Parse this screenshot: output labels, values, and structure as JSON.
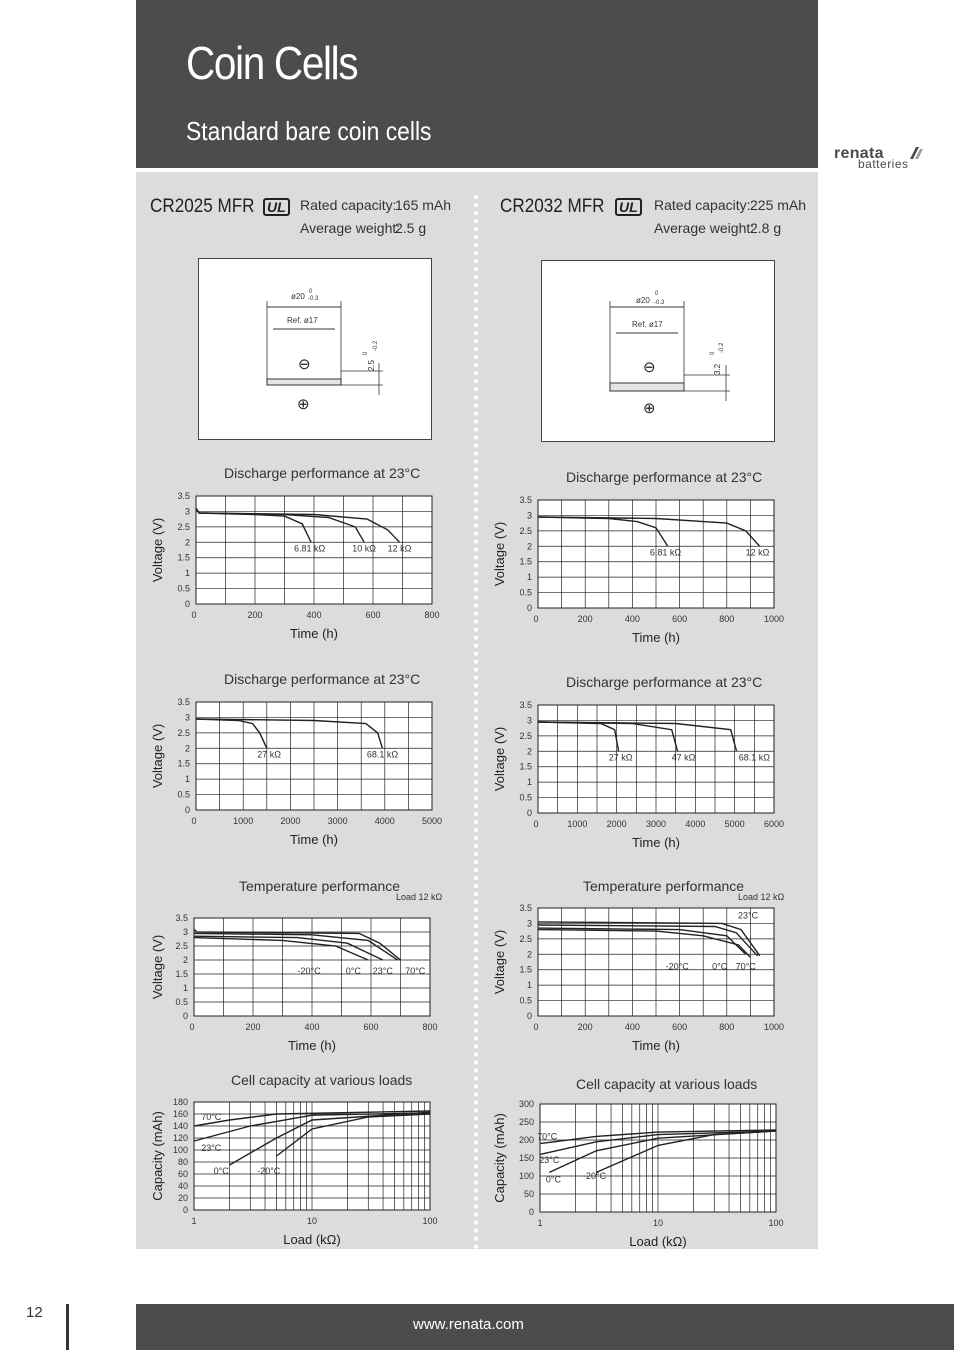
{
  "header": {
    "title": "Coin Cells",
    "subtitle": "Standard bare coin cells",
    "brand": "renata",
    "brand_sub": "batteries"
  },
  "colors": {
    "header_bg": "#4c4c4e",
    "panel_bg": "#dcdcdc",
    "plot_line": "#222222"
  },
  "products": [
    {
      "model": "CR2025 MFR",
      "ul_mark": "UL",
      "capacity_label": "Rated capacity:",
      "capacity_value": "165 mAh",
      "weight_label": "Average weight:",
      "weight_value": "2.5 g",
      "drawing": {
        "diameter": "ø20",
        "diameter_tol_upper": "0",
        "diameter_tol_lower": "-0.3",
        "ref": "Ref. ø17",
        "height": "2.5",
        "height_tol_upper": "0",
        "height_tol_lower": "-0.2",
        "neg_symbol": "⊖",
        "pos_symbol": "⊕"
      }
    },
    {
      "model": "CR2032 MFR",
      "ul_mark": "UL",
      "capacity_label": "Rated capacity:",
      "capacity_value": "225 mAh",
      "weight_label": "Average weight:",
      "weight_value": "2.8 g",
      "drawing": {
        "diameter": "ø20",
        "diameter_tol_upper": "0",
        "diameter_tol_lower": "-0.3",
        "ref": "Ref. ø17",
        "height": "3.2",
        "height_tol_upper": "0",
        "height_tol_lower": "-0.2",
        "neg_symbol": "⊖",
        "pos_symbol": "⊕"
      }
    }
  ],
  "chart_data": [
    {
      "id": "cr2025_discharge_1",
      "type": "line",
      "title": "Discharge performance at 23°C",
      "xlabel": "Time (h)",
      "ylabel": "Voltage (V)",
      "xlim": [
        0,
        800
      ],
      "ylim": [
        0,
        3.5
      ],
      "xticks": [
        "0",
        "200",
        "400",
        "600",
        "800"
      ],
      "yticks": [
        "0",
        "0.5",
        "1",
        "1.5",
        "2",
        "2.5",
        "3",
        "3.5"
      ],
      "series": [
        {
          "points": [
            [
              0,
              3.1
            ],
            [
              10,
              2.95
            ],
            [
              200,
              2.9
            ],
            [
              300,
              2.85
            ],
            [
              360,
              2.6
            ],
            [
              390,
              2.0
            ]
          ]
        },
        {
          "points": [
            [
              0,
              3.1
            ],
            [
              10,
              2.95
            ],
            [
              300,
              2.9
            ],
            [
              450,
              2.8
            ],
            [
              540,
              2.5
            ],
            [
              570,
              2.0
            ]
          ]
        },
        {
          "points": [
            [
              0,
              3.1
            ],
            [
              10,
              2.95
            ],
            [
              400,
              2.9
            ],
            [
              580,
              2.75
            ],
            [
              650,
              2.4
            ],
            [
              690,
              2.0
            ]
          ]
        }
      ],
      "labels": [
        {
          "text": "6.81 kΩ",
          "x": 385,
          "y": 1.8
        },
        {
          "text": "10 kΩ",
          "x": 570,
          "y": 1.8
        },
        {
          "text": "12 kΩ",
          "x": 690,
          "y": 1.8
        }
      ]
    },
    {
      "id": "cr2025_discharge_2",
      "type": "line",
      "title": "Discharge performance at 23°C",
      "xlabel": "Time (h)",
      "ylabel": "Voltage (V)",
      "xlim": [
        0,
        5000
      ],
      "ylim": [
        0,
        3.5
      ],
      "xticks": [
        "0",
        "1000",
        "2000",
        "3000",
        "4000",
        "5000"
      ],
      "yticks": [
        "0",
        "0.5",
        "1",
        "1.5",
        "2",
        "2.5",
        "3",
        "3.5"
      ],
      "series": [
        {
          "points": [
            [
              0,
              2.95
            ],
            [
              900,
              2.9
            ],
            [
              1200,
              2.8
            ],
            [
              1350,
              2.5
            ],
            [
              1500,
              2.0
            ]
          ]
        },
        {
          "points": [
            [
              0,
              2.95
            ],
            [
              2500,
              2.9
            ],
            [
              3600,
              2.8
            ],
            [
              3850,
              2.5
            ],
            [
              3950,
              2.0
            ]
          ]
        }
      ],
      "labels": [
        {
          "text": "27 kΩ",
          "x": 1550,
          "y": 1.8
        },
        {
          "text": "68.1 kΩ",
          "x": 3950,
          "y": 1.8
        }
      ]
    },
    {
      "id": "cr2025_temperature",
      "type": "line",
      "title": "Temperature performance",
      "note": "Load 12 kΩ",
      "xlabel": "Time (h)",
      "ylabel": "Voltage (V)",
      "xlim": [
        0,
        800
      ],
      "ylim": [
        0,
        3.5
      ],
      "xticks": [
        "0",
        "200",
        "400",
        "600",
        "800"
      ],
      "yticks": [
        "0",
        "0.5",
        "1",
        "1.5",
        "2",
        "2.5",
        "3",
        "3.5"
      ],
      "series": [
        {
          "name": "-20°C",
          "points": [
            [
              0,
              2.8
            ],
            [
              300,
              2.7
            ],
            [
              480,
              2.5
            ],
            [
              590,
              2.0
            ]
          ]
        },
        {
          "name": "0°C",
          "points": [
            [
              0,
              2.85
            ],
            [
              350,
              2.8
            ],
            [
              520,
              2.6
            ],
            [
              640,
              2.0
            ]
          ]
        },
        {
          "name": "23°C",
          "points": [
            [
              0,
              2.95
            ],
            [
              400,
              2.9
            ],
            [
              590,
              2.7
            ],
            [
              690,
              2.0
            ]
          ]
        },
        {
          "name": "70°C",
          "points": [
            [
              0,
              3.1
            ],
            [
              10,
              3.0
            ],
            [
              560,
              2.95
            ],
            [
              630,
              2.6
            ],
            [
              700,
              2.0
            ]
          ]
        }
      ],
      "labels": [
        {
          "text": "-20°C",
          "x": 390,
          "y": 1.6
        },
        {
          "text": "0°C",
          "x": 540,
          "y": 1.6
        },
        {
          "text": "23°C",
          "x": 640,
          "y": 1.6
        },
        {
          "text": "70°C",
          "x": 750,
          "y": 1.6
        }
      ]
    },
    {
      "id": "cr2025_capacity",
      "type": "line",
      "title": "Cell capacity at various loads",
      "xlabel": "Load (kΩ)",
      "ylabel": "Capacity (mAh)",
      "xscale": "log",
      "xlim": [
        1,
        100
      ],
      "ylim": [
        0,
        180
      ],
      "xticks": [
        "1",
        "10",
        "100"
      ],
      "yticks": [
        "0",
        "20",
        "40",
        "60",
        "80",
        "100",
        "120",
        "140",
        "160",
        "180"
      ],
      "series": [
        {
          "name": "70°C",
          "points": [
            [
              1,
              140
            ],
            [
              2,
              150
            ],
            [
              5,
              160
            ],
            [
              100,
              165
            ]
          ]
        },
        {
          "name": "23°C",
          "points": [
            [
              1,
              115
            ],
            [
              3,
              140
            ],
            [
              10,
              158
            ],
            [
              100,
              162
            ]
          ]
        },
        {
          "name": "0°C",
          "points": [
            [
              2,
              75
            ],
            [
              5,
              120
            ],
            [
              10,
              150
            ],
            [
              100,
              163
            ]
          ]
        },
        {
          "name": "-20°C",
          "points": [
            [
              5,
              90
            ],
            [
              10,
              135
            ],
            [
              30,
              155
            ],
            [
              100,
              160
            ]
          ]
        }
      ],
      "labels": [
        {
          "text": "70°C",
          "x": 1.4,
          "y": 155
        },
        {
          "text": "23°C",
          "x": 1.4,
          "y": 103
        },
        {
          "text": "0°C",
          "x": 1.7,
          "y": 65
        },
        {
          "text": "-20°C",
          "x": 4.3,
          "y": 65
        }
      ]
    },
    {
      "id": "cr2032_discharge_1",
      "type": "line",
      "title": "Discharge performance at 23°C",
      "xlabel": "Time (h)",
      "ylabel": "Voltage (V)",
      "xlim": [
        0,
        1000
      ],
      "ylim": [
        0,
        3.5
      ],
      "xticks": [
        "0",
        "200",
        "400",
        "600",
        "800",
        "1000"
      ],
      "yticks": [
        "0",
        "0.5",
        "1",
        "1.5",
        "2",
        "2.5",
        "3",
        "3.5"
      ],
      "series": [
        {
          "points": [
            [
              0,
              2.95
            ],
            [
              300,
              2.9
            ],
            [
              420,
              2.8
            ],
            [
              500,
              2.6
            ],
            [
              550,
              2.0
            ]
          ]
        },
        {
          "points": [
            [
              0,
              2.95
            ],
            [
              500,
              2.9
            ],
            [
              800,
              2.75
            ],
            [
              880,
              2.5
            ],
            [
              940,
              2.0
            ]
          ]
        }
      ],
      "labels": [
        {
          "text": "6.81 kΩ",
          "x": 540,
          "y": 1.8
        },
        {
          "text": "12 kΩ",
          "x": 930,
          "y": 1.8
        }
      ]
    },
    {
      "id": "cr2032_discharge_2",
      "type": "line",
      "title": "Discharge performance at 23°C",
      "xlabel": "Time (h)",
      "ylabel": "Voltage (V)",
      "xlim": [
        0,
        6000
      ],
      "ylim": [
        0,
        3.5
      ],
      "xticks": [
        "0",
        "1000",
        "2000",
        "3000",
        "4000",
        "5000",
        "6000"
      ],
      "yticks": [
        "0",
        "0.5",
        "1",
        "1.5",
        "2",
        "2.5",
        "3",
        "3.5"
      ],
      "series": [
        {
          "points": [
            [
              0,
              2.95
            ],
            [
              1600,
              2.9
            ],
            [
              1950,
              2.7
            ],
            [
              2050,
              2.0
            ]
          ]
        },
        {
          "points": [
            [
              0,
              2.95
            ],
            [
              2400,
              2.9
            ],
            [
              3400,
              2.7
            ],
            [
              3550,
              2.0
            ]
          ]
        },
        {
          "points": [
            [
              0,
              2.95
            ],
            [
              3500,
              2.9
            ],
            [
              4900,
              2.7
            ],
            [
              5050,
              2.0
            ]
          ]
        }
      ],
      "labels": [
        {
          "text": "27 kΩ",
          "x": 2100,
          "y": 1.8
        },
        {
          "text": "47 kΩ",
          "x": 3700,
          "y": 1.8
        },
        {
          "text": "68.1 kΩ",
          "x": 5500,
          "y": 1.8
        }
      ]
    },
    {
      "id": "cr2032_temperature",
      "type": "line",
      "title": "Temperature performance",
      "note": "Load 12 kΩ",
      "xlabel": "Time (h)",
      "ylabel": "Voltage (V)",
      "xlim": [
        0,
        1000
      ],
      "ylim": [
        0,
        3.5
      ],
      "xticks": [
        "0",
        "200",
        "400",
        "600",
        "800",
        "1000"
      ],
      "yticks": [
        "0",
        "0.5",
        "1",
        "1.5",
        "2",
        "2.5",
        "3",
        "3.5"
      ],
      "series": [
        {
          "name": "-20°C",
          "points": [
            [
              0,
              2.8
            ],
            [
              500,
              2.75
            ],
            [
              700,
              2.6
            ],
            [
              850,
              2.3
            ],
            [
              900,
              1.9
            ]
          ]
        },
        {
          "name": "0°C",
          "points": [
            [
              0,
              2.85
            ],
            [
              600,
              2.8
            ],
            [
              800,
              2.6
            ],
            [
              880,
              2.0
            ]
          ]
        },
        {
          "name": "23°C",
          "points": [
            [
              0,
              2.95
            ],
            [
              750,
              2.9
            ],
            [
              840,
              2.7
            ],
            [
              930,
              1.95
            ]
          ]
        },
        {
          "name": "70°C",
          "points": [
            [
              0,
              3.05
            ],
            [
              780,
              3.0
            ],
            [
              860,
              2.8
            ],
            [
              940,
              1.95
            ]
          ]
        }
      ],
      "labels": [
        {
          "text": "-20°C",
          "x": 590,
          "y": 1.6
        },
        {
          "text": "0°C",
          "x": 770,
          "y": 1.6
        },
        {
          "text": "70°C",
          "x": 880,
          "y": 1.6
        },
        {
          "text": "23°C",
          "x": 890,
          "y": 3.25
        }
      ]
    },
    {
      "id": "cr2032_capacity",
      "type": "line",
      "title": "Cell capacity at various loads",
      "xlabel": "Load (kΩ)",
      "ylabel": "Capacity (mAh)",
      "xscale": "log",
      "xlim": [
        1,
        100
      ],
      "ylim": [
        0,
        300
      ],
      "xticks": [
        "1",
        "10",
        "100"
      ],
      "yticks": [
        "0",
        "50",
        "100",
        "150",
        "200",
        "250",
        "300"
      ],
      "series": [
        {
          "name": "70°C",
          "points": [
            [
              1,
              190
            ],
            [
              3,
              210
            ],
            [
              10,
              222
            ],
            [
              100,
              228
            ]
          ]
        },
        {
          "name": "23°C",
          "points": [
            [
              1,
              160
            ],
            [
              3,
              195
            ],
            [
              10,
              215
            ],
            [
              100,
              225
            ]
          ]
        },
        {
          "name": "0°C",
          "points": [
            [
              1.2,
              110
            ],
            [
              3,
              170
            ],
            [
              10,
              205
            ],
            [
              100,
              225
            ]
          ]
        },
        {
          "name": "-20°C",
          "points": [
            [
              3,
              110
            ],
            [
              10,
              185
            ],
            [
              30,
              215
            ],
            [
              100,
              225
            ]
          ]
        }
      ],
      "labels": [
        {
          "text": "70°C",
          "x": 1.15,
          "y": 210
        },
        {
          "text": "23°C",
          "x": 1.2,
          "y": 145
        },
        {
          "text": "0°C",
          "x": 1.3,
          "y": 90
        },
        {
          "text": "-20°C",
          "x": 2.9,
          "y": 100
        }
      ]
    }
  ],
  "footer": {
    "page_number": "12",
    "url": "www.renata.com"
  }
}
